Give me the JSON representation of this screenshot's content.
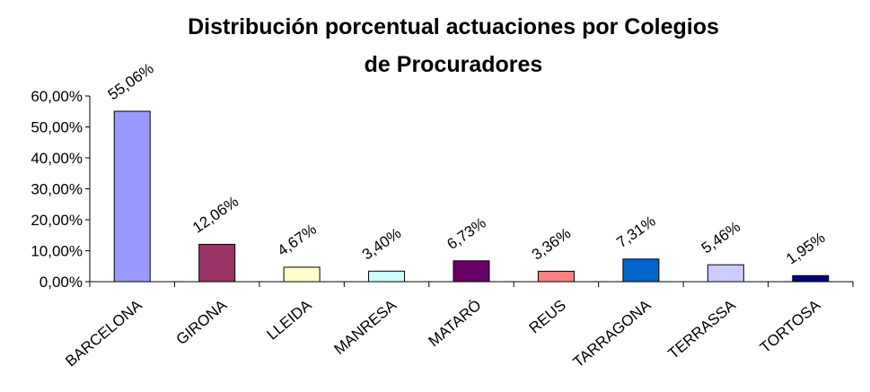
{
  "chart_data": {
    "type": "bar",
    "title": [
      "Distribución porcentual actuaciones  por Colegios",
      "de Procuradores"
    ],
    "categories": [
      "BARCELONA",
      "GIRONA",
      "LLEIDA",
      "MANRESA",
      "MATARÓ",
      "REUS",
      "TARRAGONA",
      "TERRASSA",
      "TORTOSA"
    ],
    "values": [
      55.06,
      12.06,
      4.67,
      3.4,
      6.73,
      3.36,
      7.31,
      5.46,
      1.95
    ],
    "value_labels": [
      "55,06%",
      "12,06%",
      "4,67%",
      "3,40%",
      "6,73%",
      "3,36%",
      "7,31%",
      "5,46%",
      "1,95%"
    ],
    "colors": [
      "#9999ff",
      "#993366",
      "#ffffcc",
      "#ccffff",
      "#660066",
      "#ff8080",
      "#0066cc",
      "#ccccff",
      "#000080"
    ],
    "ylim": [
      0,
      60
    ],
    "yticks": [
      {
        "value": 0,
        "label": "0,00%"
      },
      {
        "value": 10,
        "label": "10,00%"
      },
      {
        "value": 20,
        "label": "20,00%"
      },
      {
        "value": 30,
        "label": "30,00%"
      },
      {
        "value": 40,
        "label": "40,00%"
      },
      {
        "value": 50,
        "label": "50,00%"
      },
      {
        "value": 60,
        "label": "60,00%"
      }
    ],
    "grid": false
  }
}
